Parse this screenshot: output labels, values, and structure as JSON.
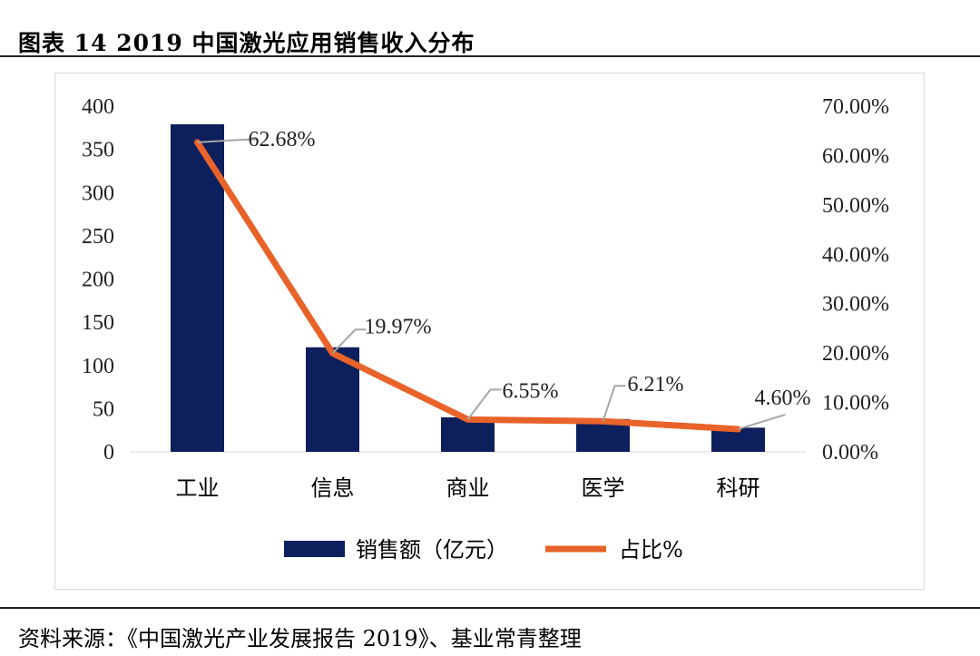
{
  "figure": {
    "title": "图表 14   2019 中国激光应用销售收入分布",
    "source": "资料来源：《中国激光产业发展报告 2019》、基业常青整理"
  },
  "chart_data": {
    "type": "bar",
    "categories": [
      "工业",
      "信息",
      "商业",
      "医学",
      "科研"
    ],
    "series": [
      {
        "name": "销售额（亿元）",
        "type": "bar",
        "axis": "left",
        "color": "#0d1f5c",
        "values": [
          379,
          121,
          40,
          38,
          28
        ]
      },
      {
        "name": "占比%",
        "type": "line",
        "axis": "right",
        "color": "#e8632a",
        "values": [
          62.68,
          19.97,
          6.55,
          6.21,
          4.6
        ],
        "labels": [
          "62.68%",
          "19.97%",
          "6.55%",
          "6.21%",
          "4.60%"
        ]
      }
    ],
    "y_left": {
      "ylim": [
        0,
        400
      ],
      "ticks": [
        "0",
        "50",
        "100",
        "150",
        "200",
        "250",
        "300",
        "350",
        "400"
      ]
    },
    "y_right": {
      "ylim": [
        0,
        70
      ],
      "ticks": [
        "0.00%",
        "10.00%",
        "20.00%",
        "30.00%",
        "40.00%",
        "50.00%",
        "60.00%",
        "70.00%"
      ]
    },
    "grid": false,
    "legend_position": "bottom"
  }
}
